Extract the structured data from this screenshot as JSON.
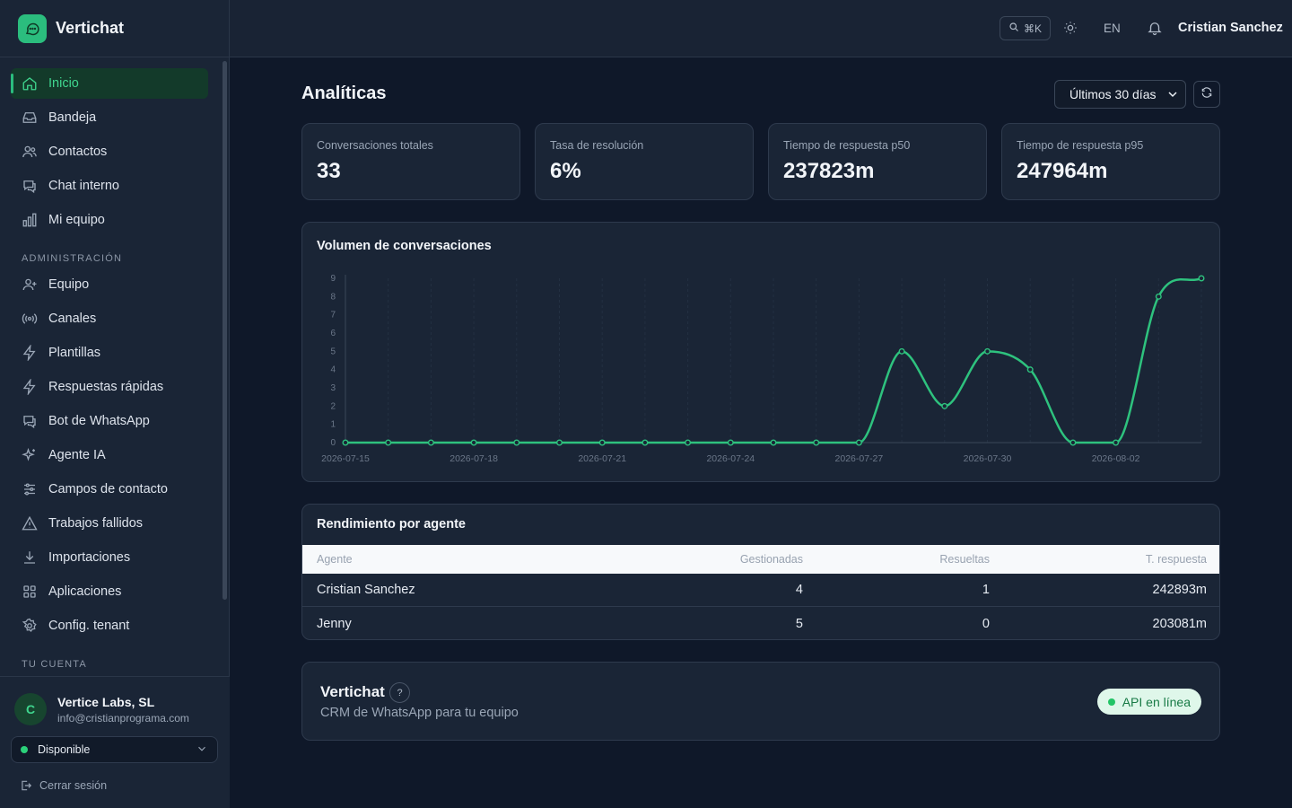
{
  "app": {
    "name": "Vertichat"
  },
  "sidebar": {
    "main_items": [
      {
        "label": "Inicio",
        "icon": "home-icon",
        "active": true
      },
      {
        "label": "Bandeja",
        "icon": "inbox-icon"
      },
      {
        "label": "Contactos",
        "icon": "users-icon"
      },
      {
        "label": "Chat interno",
        "icon": "chat-icon"
      },
      {
        "label": "Mi equipo",
        "icon": "bar-chart-icon"
      }
    ],
    "admin_label": "ADMINISTRACIÓN",
    "admin_items": [
      {
        "label": "Equipo",
        "icon": "user-plus-icon"
      },
      {
        "label": "Canales",
        "icon": "radio-icon"
      },
      {
        "label": "Plantillas",
        "icon": "bolt-icon"
      },
      {
        "label": "Respuestas rápidas",
        "icon": "bolt-icon"
      },
      {
        "label": "Bot de WhatsApp",
        "icon": "bot-chat-icon"
      },
      {
        "label": "Agente IA",
        "icon": "sparkles-icon"
      },
      {
        "label": "Campos de contacto",
        "icon": "sliders-icon"
      },
      {
        "label": "Trabajos fallidos",
        "icon": "warning-icon"
      },
      {
        "label": "Importaciones",
        "icon": "download-icon"
      },
      {
        "label": "Aplicaciones",
        "icon": "grid-icon"
      },
      {
        "label": "Config. tenant",
        "icon": "gear-icon"
      }
    ],
    "account_label": "TU CUENTA",
    "account": {
      "avatar_initial": "C",
      "name": "Vertice Labs, SL",
      "email": "info@cristianprograma.com",
      "status": "Disponible",
      "logout": "Cerrar sesión"
    }
  },
  "header": {
    "search_shortcut": "⌘K",
    "language": "EN",
    "user": "Cristian Sanchez"
  },
  "main": {
    "title": "Analíticas",
    "range": "Últimos 30 días",
    "stats": [
      {
        "label": "Conversaciones totales",
        "value": "33"
      },
      {
        "label": "Tasa de resolución",
        "value": "6%"
      },
      {
        "label": "Tiempo de respuesta p50",
        "value": "237823m"
      },
      {
        "label": "Tiempo de respuesta p95",
        "value": "247964m"
      }
    ],
    "chart_title": "Volumen de conversaciones",
    "table": {
      "title": "Rendimiento por agente",
      "headers": {
        "agent": "Agente",
        "handled": "Gestionadas",
        "resolved": "Resueltas",
        "response": "T. respuesta"
      },
      "rows": [
        {
          "agent": "Cristian Sanchez",
          "handled": "4",
          "resolved": "1",
          "response": "242893m"
        },
        {
          "agent": "Jenny",
          "handled": "5",
          "resolved": "0",
          "response": "203081m"
        }
      ]
    },
    "footer": {
      "title": "Vertichat",
      "help": "?",
      "subtitle": "CRM de WhatsApp para tu equipo",
      "api_status": "API en línea"
    }
  },
  "colors": {
    "accent": "#2bbd7e",
    "line": "#2ec27e",
    "background": "#0f1829",
    "card": "#1a2536"
  },
  "chart_data": {
    "type": "line",
    "x": [
      "2026-07-15",
      "2026-07-16",
      "2026-07-17",
      "2026-07-18",
      "2026-07-19",
      "2026-07-20",
      "2026-07-21",
      "2026-07-22",
      "2026-07-23",
      "2026-07-24",
      "2026-07-25",
      "2026-07-26",
      "2026-07-27",
      "2026-07-28",
      "2026-07-29",
      "2026-07-30",
      "2026-07-31",
      "2026-08-01",
      "2026-08-02",
      "2026-08-03",
      "2026-08-04"
    ],
    "x_ticks": [
      "2026-07-15",
      "2026-07-18",
      "2026-07-21",
      "2026-07-24",
      "2026-07-27",
      "2026-07-30",
      "2026-08-02"
    ],
    "values": [
      0,
      0,
      0,
      0,
      0,
      0,
      0,
      0,
      0,
      0,
      0,
      0,
      0,
      5,
      2,
      5,
      4,
      0,
      0,
      8,
      9
    ],
    "ylim": [
      0,
      9
    ],
    "y_ticks": [
      0,
      1,
      2,
      3,
      4,
      5,
      6,
      7,
      8,
      9
    ],
    "grid": true,
    "title": "Volumen de conversaciones"
  }
}
